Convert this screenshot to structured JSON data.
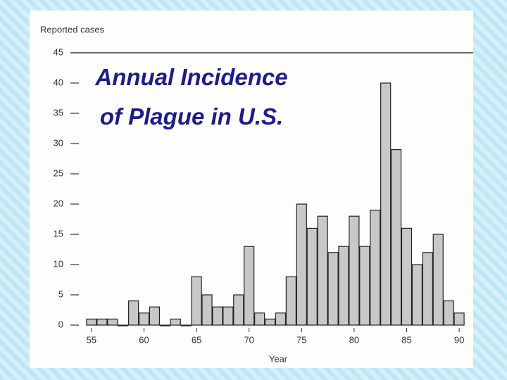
{
  "chart_data": {
    "type": "bar",
    "title": "Annual Incidence of Plague in U.S.",
    "y_label": "Reported cases",
    "x_label": "Year",
    "x": [
      55,
      56,
      57,
      58,
      59,
      60,
      61,
      62,
      63,
      64,
      65,
      66,
      67,
      68,
      69,
      70,
      71,
      72,
      73,
      74,
      75,
      76,
      77,
      78,
      79,
      80,
      81,
      82,
      83,
      84,
      85,
      86,
      87,
      88,
      89,
      90
    ],
    "values": [
      1,
      1,
      1,
      0,
      4,
      2,
      3,
      0,
      1,
      0,
      8,
      5,
      3,
      3,
      5,
      13,
      2,
      1,
      2,
      8,
      20,
      16,
      18,
      12,
      13,
      18,
      13,
      19,
      40,
      29,
      16,
      10,
      12,
      15,
      4,
      2
    ],
    "color": "#c8c8c8",
    "xlim": [
      54,
      91
    ],
    "xticks": [
      55,
      60,
      65,
      70,
      75,
      80,
      85,
      90
    ],
    "ylim": [
      0,
      45
    ],
    "yticks": [
      0,
      5,
      10,
      15,
      20,
      25,
      30,
      35,
      40,
      45
    ],
    "grid": false
  }
}
